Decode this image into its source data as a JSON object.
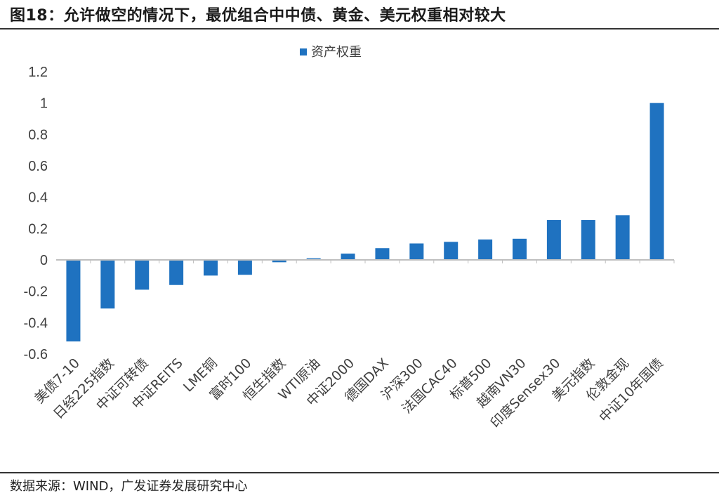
{
  "figure": {
    "title": "图18：允许做空的情况下，最优组合中中债、黄金、美元权重相对较大",
    "source": "数据来源：WIND，广发证券发展研究中心"
  },
  "colors": {
    "bar": "#1f72c0",
    "axis": "#bfbfbf",
    "text": "#404040"
  },
  "chart_data": {
    "type": "bar",
    "categories": [
      "美债7-10",
      "日经225指数",
      "中证可转债",
      "中证REITS",
      "LME铜",
      "富时100",
      "恒生指数",
      "WTI原油",
      "中证2000",
      "德国DAX",
      "沪深300",
      "法国CAC40",
      "标普500",
      "越南VN30",
      "印度Sensex30",
      "美元指数",
      "伦敦金现",
      "中证10年国债"
    ],
    "series": [
      {
        "name": "资产权重",
        "values": [
          -0.52,
          -0.31,
          -0.19,
          -0.16,
          -0.1,
          -0.095,
          -0.015,
          0.01,
          0.04,
          0.075,
          0.105,
          0.115,
          0.13,
          0.135,
          0.255,
          0.255,
          0.285,
          1.0
        ]
      }
    ],
    "ylim": [
      -0.6,
      1.2
    ],
    "yticks": [
      -0.6,
      -0.4,
      -0.2,
      0,
      0.2,
      0.4,
      0.6,
      0.8,
      1,
      1.2
    ],
    "legend": "top-center",
    "grid": false
  }
}
